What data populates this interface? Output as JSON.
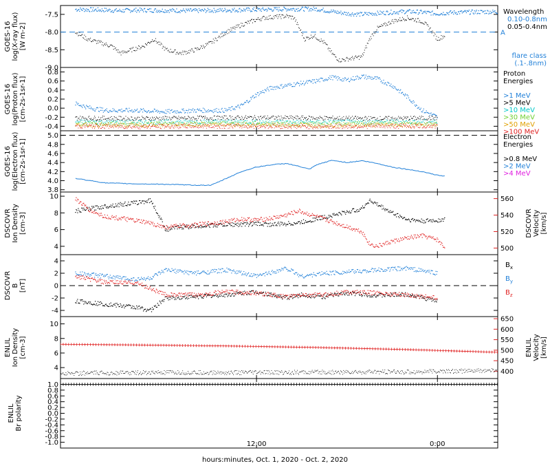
{
  "chart_data": {
    "type": "line",
    "xlabel": "hours:minutes, Oct.  1, 2020 - Oct.  2, 2020",
    "x_ticks": [
      "12:00",
      "0:00"
    ],
    "x_range_hours": [
      -1.0,
      28.0
    ],
    "panels": [
      {
        "id": "xray",
        "ylabel_lines": [
          "GOES-16",
          "log(X-ray flux)",
          "[W m-2]"
        ],
        "ylim": [
          -9.0,
          -7.25
        ],
        "yticks": [
          -7.5,
          -8.0,
          -8.5,
          -9.0
        ],
        "ytick_labels": [
          "-7.5",
          "-8.0",
          "-8.5",
          "-9.0"
        ],
        "hline": {
          "y": -8.0,
          "color": "#1f7fd8",
          "label": "A"
        },
        "legend_title": "Wavelength",
        "legend": [
          {
            "label": "0.10-0.8nm",
            "color": "#1f7fd8"
          },
          {
            "label": "0.05-0.4nm",
            "color": "#000000"
          }
        ],
        "legend_note": [
          "flare class",
          "(.1-.8nm)"
        ],
        "legend_note_color": "#1f7fd8",
        "series": [
          {
            "color": "#1f7fd8",
            "style": "dots",
            "size": 1.3,
            "x": [
              0.0,
              2.0,
              3.0,
              4.0,
              6.0,
              8.0,
              10.0,
              12.0,
              14.0,
              15.0,
              16.0,
              17.0,
              18.0,
              19.0,
              20.0,
              21.0,
              22.0,
              23.0,
              24.0,
              25.0,
              26.0,
              27.0,
              28.0
            ],
            "y": [
              -7.36,
              -7.38,
              -7.4,
              -7.38,
              -7.39,
              -7.4,
              -7.38,
              -7.37,
              -7.35,
              -7.35,
              -7.35,
              -7.42,
              -7.48,
              -7.5,
              -7.47,
              -7.44,
              -7.42,
              -7.44,
              -7.48,
              -7.45,
              -7.44,
              -7.43,
              -7.43
            ]
          },
          {
            "color": "#000000",
            "style": "dots",
            "size": 1.0,
            "x": [
              0.0,
              0.8,
              1.6,
              2.4,
              3.0,
              4.5,
              5.2,
              6.0,
              7.0,
              8.0,
              9.0,
              10.0,
              11.0,
              12.0,
              12.5,
              13.0,
              14.0,
              14.5,
              15.2,
              15.8,
              16.5,
              17.0,
              17.5,
              19.0,
              19.5,
              20.0,
              21.0,
              22.0,
              23.0,
              23.5,
              24.0,
              24.5
            ],
            "y": [
              -8.0,
              -8.2,
              -8.3,
              -8.4,
              -8.6,
              -8.4,
              -8.2,
              -8.5,
              -8.6,
              -8.5,
              -8.3,
              -8.0,
              -7.8,
              -7.65,
              -7.6,
              -7.58,
              -7.55,
              -7.6,
              -8.2,
              -8.1,
              -8.3,
              -8.6,
              -8.8,
              -8.7,
              -8.2,
              -7.9,
              -7.7,
              -7.6,
              -7.7,
              -7.9,
              -8.2,
              -8.1
            ]
          }
        ]
      },
      {
        "id": "proton",
        "ylabel_lines": [
          "GOES-16",
          "log(Proton flux)",
          "[cm-2s-1sr-1]"
        ],
        "ylim": [
          -0.5,
          0.9
        ],
        "yticks": [
          0.8,
          0.6,
          0.4,
          0.2,
          0.0,
          -0.2,
          -0.4
        ],
        "ytick_labels": [
          "0.8",
          "0.6",
          "0.4",
          "0.2",
          "0.0",
          "-0.2",
          "-0.4"
        ],
        "legend_title": "Proton Energies",
        "legend": [
          {
            "label": ">1 MeV",
            "color": "#1f7fd8"
          },
          {
            "label": ">5 MeV",
            "color": "#000000"
          },
          {
            "label": ">10 MeV",
            "color": "#00c8c8"
          },
          {
            "label": ">30 MeV",
            "color": "#6fd030"
          },
          {
            "label": ">50 MeV",
            "color": "#e0a000"
          },
          {
            "label": ">100 MeV",
            "color": "#e02020"
          }
        ],
        "series": [
          {
            "color": "#1f7fd8",
            "style": "dots",
            "size": 1.2,
            "x": [
              0.0,
              1.0,
              2.0,
              4.0,
              6.0,
              8.0,
              10.0,
              11.0,
              12.0,
              13.0,
              14.0,
              15.0,
              16.0,
              17.0,
              18.0,
              19.0,
              20.0,
              21.0,
              22.0,
              23.0,
              24.0
            ],
            "y": [
              0.1,
              0.0,
              -0.05,
              -0.05,
              -0.08,
              -0.05,
              -0.05,
              0.05,
              0.3,
              0.45,
              0.5,
              0.55,
              0.6,
              0.68,
              0.62,
              0.7,
              0.65,
              0.5,
              0.25,
              -0.05,
              -0.2
            ]
          },
          {
            "color": "#000000",
            "style": "dots",
            "size": 1.0,
            "x": [
              0.0,
              4.0,
              8.0,
              12.0,
              16.0,
              20.0,
              24.0
            ],
            "y": [
              -0.22,
              -0.23,
              -0.22,
              -0.21,
              -0.22,
              -0.23,
              -0.22
            ]
          },
          {
            "color": "#00c8c8",
            "style": "dots",
            "size": 1.0,
            "x": [
              0.0,
              4.0,
              8.0,
              12.0,
              16.0,
              20.0,
              24.0
            ],
            "y": [
              -0.3,
              -0.31,
              -0.3,
              -0.3,
              -0.31,
              -0.3,
              -0.3
            ]
          },
          {
            "color": "#6fd030",
            "style": "dots",
            "size": 1.0,
            "x": [
              0.0,
              4.0,
              8.0,
              12.0,
              16.0,
              20.0,
              24.0
            ],
            "y": [
              -0.34,
              -0.35,
              -0.34,
              -0.34,
              -0.35,
              -0.34,
              -0.34
            ]
          },
          {
            "color": "#e0a000",
            "style": "dots",
            "size": 1.0,
            "x": [
              0.0,
              4.0,
              8.0,
              12.0,
              16.0,
              20.0,
              24.0
            ],
            "y": [
              -0.37,
              -0.38,
              -0.37,
              -0.37,
              -0.38,
              -0.37,
              -0.37
            ]
          },
          {
            "color": "#e02020",
            "style": "dots",
            "size": 1.0,
            "x": [
              0.0,
              4.0,
              8.0,
              12.0,
              16.0,
              20.0,
              24.0
            ],
            "y": [
              -0.4,
              -0.41,
              -0.4,
              -0.4,
              -0.41,
              -0.4,
              -0.4
            ]
          }
        ]
      },
      {
        "id": "electron",
        "ylabel_lines": [
          "GOES-16",
          "log(Electron flux)",
          "[cm-2s-1sr-1]"
        ],
        "ylim": [
          3.75,
          5.1
        ],
        "yticks": [
          5.0,
          4.8,
          4.6,
          4.4,
          4.2,
          4.0,
          3.8
        ],
        "ytick_labels": [
          "5.0",
          "4.8",
          "4.6",
          "4.4",
          "4.2",
          "4.0",
          "3.8"
        ],
        "hline": {
          "y": 5.0,
          "color": "#000000",
          "label": ""
        },
        "legend_title": "Electron Energies",
        "legend": [
          {
            "label": ">0.8 MeV",
            "color": "#000000"
          },
          {
            "label": ">2 MeV",
            "color": "#1f7fd8"
          },
          {
            "label": ">4 MeV",
            "color": "#e020e0"
          }
        ],
        "series": [
          {
            "color": "#1f7fd8",
            "style": "line",
            "size": 1.0,
            "x": [
              0.0,
              1.0,
              2.0,
              4.0,
              6.0,
              8.0,
              9.0,
              10.0,
              11.0,
              12.0,
              13.0,
              14.0,
              15.0,
              15.5,
              16.0,
              17.0,
              18.0,
              19.0,
              20.0,
              21.0,
              22.0,
              23.0,
              24.0,
              24.5
            ],
            "y": [
              4.05,
              4.0,
              3.95,
              3.93,
              3.92,
              3.9,
              3.9,
              4.05,
              4.2,
              4.3,
              4.35,
              4.38,
              4.3,
              4.25,
              4.35,
              4.45,
              4.4,
              4.44,
              4.38,
              4.3,
              4.25,
              4.2,
              4.12,
              4.1
            ]
          }
        ]
      },
      {
        "id": "dscovr-density",
        "ylabel_lines": [
          "DSCOVR",
          "Ion Density",
          "[cm-3]"
        ],
        "ylim": [
          3.0,
          10.5
        ],
        "yticks": [
          10,
          8,
          6,
          4
        ],
        "ytick_labels": [
          "10",
          "8",
          "6",
          "4"
        ],
        "right_axis": {
          "ylabel_lines": [
            "DSCOVR",
            "Velocity",
            "[km/s]"
          ],
          "ylim": [
            492,
            568
          ],
          "yticks": [
            560,
            540,
            520,
            500
          ],
          "ytick_labels": [
            "560",
            "540",
            "520",
            "500"
          ],
          "color": "#e02020"
        },
        "series": [
          {
            "color": "#000000",
            "style": "dots",
            "size": 1.2,
            "x": [
              0.0,
              1.0,
              2.0,
              3.0,
              4.0,
              5.0,
              6.0,
              7.0,
              8.0,
              9.0,
              10.0,
              11.0,
              12.0,
              13.0,
              14.0,
              14.8,
              19.0,
              19.5,
              20.0,
              21.0,
              22.0,
              23.0,
              24.0,
              24.5
            ],
            "y": [
              8.2,
              8.5,
              8.8,
              9.0,
              9.2,
              9.5,
              6.0,
              6.3,
              6.4,
              6.5,
              6.6,
              6.6,
              6.7,
              6.6,
              6.7,
              6.8,
              8.5,
              9.5,
              9.0,
              8.0,
              7.2,
              7.0,
              7.1,
              7.2
            ]
          },
          {
            "color": "#e02020",
            "style": "dots",
            "size": 1.2,
            "axis": "right",
            "x": [
              0.0,
              1.0,
              2.0,
              3.0,
              4.0,
              5.0,
              6.0,
              7.0,
              8.0,
              9.0,
              10.0,
              11.0,
              12.0,
              13.0,
              14.0,
              14.8,
              19.0,
              19.5,
              20.0,
              21.0,
              22.0,
              23.0,
              24.0,
              24.5
            ],
            "y": [
              560,
              545,
              538,
              536,
              533,
              530,
              525,
              527,
              528,
              530,
              532,
              535,
              534,
              536,
              540,
              545,
              520,
              505,
              502,
              508,
              512,
              515,
              510,
              500
            ]
          }
        ]
      },
      {
        "id": "dscovr-b",
        "ylabel_lines": [
          "DSCOVR",
          "B",
          "[nT]"
        ],
        "ylim": [
          -5.0,
          5.0
        ],
        "yticks": [
          4,
          2,
          0,
          -2,
          -4
        ],
        "ytick_labels": [
          "4",
          "2",
          "0",
          "-2",
          "-4"
        ],
        "hline": {
          "y": 0.0,
          "color": "#000000",
          "label": ""
        },
        "legend": [
          {
            "label": "Bx",
            "color": "#000000"
          },
          {
            "label": "By",
            "color": "#1f7fd8"
          },
          {
            "label": "Bz",
            "color": "#e02020"
          }
        ],
        "series": [
          {
            "color": "#000000",
            "style": "dots",
            "size": 1.2,
            "x": [
              0.0,
              2.0,
              4.0,
              5.0,
              6.0,
              8.0,
              10.0,
              12.0,
              14.0,
              15.0,
              16.5,
              18.0,
              20.0,
              22.0,
              24.0
            ],
            "y": [
              -2.5,
              -3.0,
              -3.5,
              -4.0,
              -2.0,
              -1.8,
              -1.5,
              -1.0,
              -2.0,
              -1.5,
              -1.8,
              -1.2,
              -1.6,
              -1.4,
              -2.5
            ]
          },
          {
            "color": "#1f7fd8",
            "style": "dots",
            "size": 1.2,
            "x": [
              0.0,
              2.0,
              4.0,
              5.0,
              6.0,
              8.0,
              10.0,
              12.0,
              14.0,
              15.0,
              16.5,
              18.0,
              20.0,
              22.0,
              24.0
            ],
            "y": [
              2.0,
              1.5,
              1.0,
              1.2,
              2.5,
              2.0,
              2.5,
              1.5,
              2.8,
              1.5,
              2.0,
              2.2,
              2.5,
              2.8,
              2.0
            ]
          },
          {
            "color": "#e02020",
            "style": "dots",
            "size": 1.2,
            "x": [
              0.0,
              2.0,
              4.0,
              5.0,
              6.0,
              8.0,
              10.0,
              12.0,
              14.0,
              15.0,
              16.5,
              18.0,
              20.0,
              22.0,
              24.0
            ],
            "y": [
              1.5,
              0.5,
              0.5,
              -0.5,
              -1.5,
              -1.5,
              -1.0,
              -1.2,
              -1.8,
              -1.5,
              -1.5,
              -1.0,
              -1.2,
              -1.5,
              -2.0
            ]
          }
        ]
      },
      {
        "id": "enlil-density",
        "ylabel_lines": [
          "ENLIL",
          "Ion Density",
          "[cm-3]"
        ],
        "ylim": [
          2.5,
          11.0
        ],
        "yticks": [
          10,
          8,
          6,
          4
        ],
        "ytick_labels": [
          "10",
          "8",
          "6",
          "4"
        ],
        "right_axis": {
          "ylabel_lines": [
            "ENLIL",
            "Velocity",
            "[km/s]"
          ],
          "ylim": [
            365,
            660
          ],
          "yticks": [
            650,
            600,
            550,
            500,
            450,
            400
          ],
          "ytick_labels": [
            "650",
            "600",
            "550",
            "500",
            "450",
            "400"
          ],
          "color": "#e02020"
        },
        "series": [
          {
            "color": "#000000",
            "style": "dots",
            "size": 0.9,
            "x": [
              -1.0,
              4.0,
              10.0,
              16.0,
              22.0,
              28.0
            ],
            "y": [
              3.2,
              3.3,
              3.3,
              3.35,
              3.4,
              3.6
            ]
          },
          {
            "color": "#e02020",
            "style": "cross",
            "size": 2.0,
            "axis": "right",
            "x": [
              -1.0,
              4.0,
              10.0,
              16.0,
              22.0,
              28.0
            ],
            "y": [
              528,
              525,
              520,
              513,
              503,
              490
            ]
          }
        ]
      },
      {
        "id": "enlil-polarity",
        "ylabel_lines": [
          "ENLIL",
          "Br polarity"
        ],
        "ylim": [
          -1.2,
          1.2
        ],
        "yticks": [
          1.0,
          0.8,
          0.6,
          0.4,
          0.2,
          0.0,
          -0.2,
          -0.4,
          -0.6,
          -0.8,
          -1.0
        ],
        "ytick_labels": [
          "1.0",
          "0.8",
          "0.6",
          "0.4",
          "0.2",
          "0.0",
          "-0.2",
          "-0.4",
          "-0.6",
          "-0.8",
          "-1.0"
        ],
        "series": [
          {
            "color": "#000000",
            "style": "cross",
            "size": 2.2,
            "x": [
              -1.0,
              28.0
            ],
            "y": [
              1.0,
              1.0
            ]
          }
        ]
      }
    ]
  }
}
